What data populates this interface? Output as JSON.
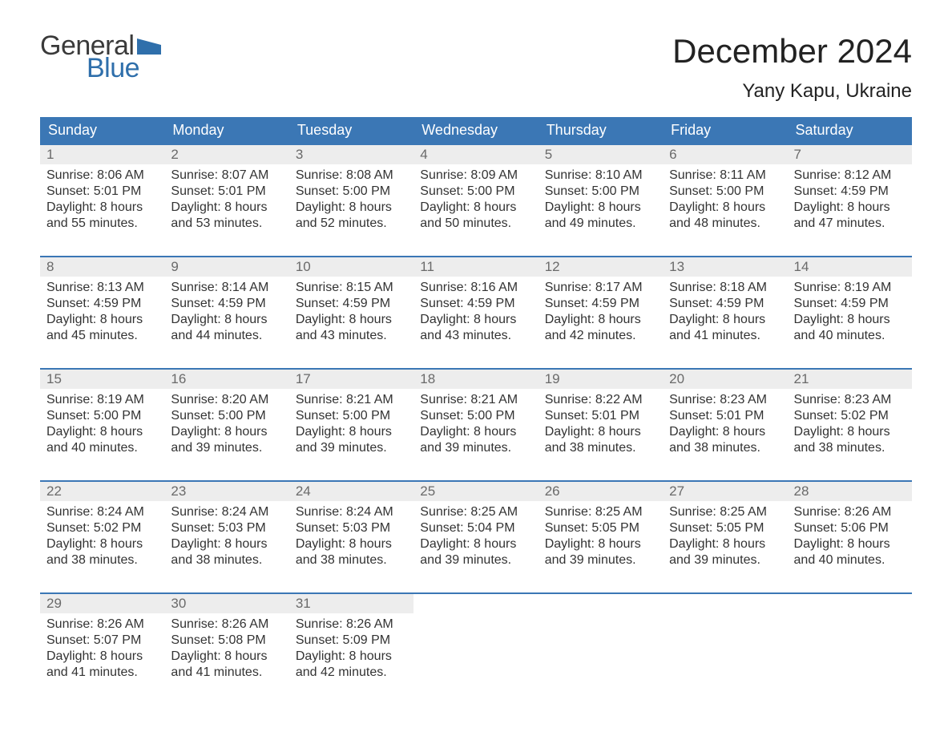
{
  "logo": {
    "line1": "General",
    "line2": "Blue",
    "flag_color": "#2f6fab"
  },
  "title": "December 2024",
  "location": "Yany Kapu, Ukraine",
  "colors": {
    "header_bg": "#3b77b5",
    "header_text": "#ffffff",
    "daynum_bg": "#ededed",
    "daynum_text": "#6a6a6a",
    "body_text": "#333333",
    "rule": "#3b77b5"
  },
  "weekdays": [
    "Sunday",
    "Monday",
    "Tuesday",
    "Wednesday",
    "Thursday",
    "Friday",
    "Saturday"
  ],
  "weeks": [
    [
      {
        "n": "1",
        "sunrise": "8:06 AM",
        "sunset": "5:01 PM",
        "dl1": "Daylight: 8 hours",
        "dl2": "and 55 minutes."
      },
      {
        "n": "2",
        "sunrise": "8:07 AM",
        "sunset": "5:01 PM",
        "dl1": "Daylight: 8 hours",
        "dl2": "and 53 minutes."
      },
      {
        "n": "3",
        "sunrise": "8:08 AM",
        "sunset": "5:00 PM",
        "dl1": "Daylight: 8 hours",
        "dl2": "and 52 minutes."
      },
      {
        "n": "4",
        "sunrise": "8:09 AM",
        "sunset": "5:00 PM",
        "dl1": "Daylight: 8 hours",
        "dl2": "and 50 minutes."
      },
      {
        "n": "5",
        "sunrise": "8:10 AM",
        "sunset": "5:00 PM",
        "dl1": "Daylight: 8 hours",
        "dl2": "and 49 minutes."
      },
      {
        "n": "6",
        "sunrise": "8:11 AM",
        "sunset": "5:00 PM",
        "dl1": "Daylight: 8 hours",
        "dl2": "and 48 minutes."
      },
      {
        "n": "7",
        "sunrise": "8:12 AM",
        "sunset": "4:59 PM",
        "dl1": "Daylight: 8 hours",
        "dl2": "and 47 minutes."
      }
    ],
    [
      {
        "n": "8",
        "sunrise": "8:13 AM",
        "sunset": "4:59 PM",
        "dl1": "Daylight: 8 hours",
        "dl2": "and 45 minutes."
      },
      {
        "n": "9",
        "sunrise": "8:14 AM",
        "sunset": "4:59 PM",
        "dl1": "Daylight: 8 hours",
        "dl2": "and 44 minutes."
      },
      {
        "n": "10",
        "sunrise": "8:15 AM",
        "sunset": "4:59 PM",
        "dl1": "Daylight: 8 hours",
        "dl2": "and 43 minutes."
      },
      {
        "n": "11",
        "sunrise": "8:16 AM",
        "sunset": "4:59 PM",
        "dl1": "Daylight: 8 hours",
        "dl2": "and 43 minutes."
      },
      {
        "n": "12",
        "sunrise": "8:17 AM",
        "sunset": "4:59 PM",
        "dl1": "Daylight: 8 hours",
        "dl2": "and 42 minutes."
      },
      {
        "n": "13",
        "sunrise": "8:18 AM",
        "sunset": "4:59 PM",
        "dl1": "Daylight: 8 hours",
        "dl2": "and 41 minutes."
      },
      {
        "n": "14",
        "sunrise": "8:19 AM",
        "sunset": "4:59 PM",
        "dl1": "Daylight: 8 hours",
        "dl2": "and 40 minutes."
      }
    ],
    [
      {
        "n": "15",
        "sunrise": "8:19 AM",
        "sunset": "5:00 PM",
        "dl1": "Daylight: 8 hours",
        "dl2": "and 40 minutes."
      },
      {
        "n": "16",
        "sunrise": "8:20 AM",
        "sunset": "5:00 PM",
        "dl1": "Daylight: 8 hours",
        "dl2": "and 39 minutes."
      },
      {
        "n": "17",
        "sunrise": "8:21 AM",
        "sunset": "5:00 PM",
        "dl1": "Daylight: 8 hours",
        "dl2": "and 39 minutes."
      },
      {
        "n": "18",
        "sunrise": "8:21 AM",
        "sunset": "5:00 PM",
        "dl1": "Daylight: 8 hours",
        "dl2": "and 39 minutes."
      },
      {
        "n": "19",
        "sunrise": "8:22 AM",
        "sunset": "5:01 PM",
        "dl1": "Daylight: 8 hours",
        "dl2": "and 38 minutes."
      },
      {
        "n": "20",
        "sunrise": "8:23 AM",
        "sunset": "5:01 PM",
        "dl1": "Daylight: 8 hours",
        "dl2": "and 38 minutes."
      },
      {
        "n": "21",
        "sunrise": "8:23 AM",
        "sunset": "5:02 PM",
        "dl1": "Daylight: 8 hours",
        "dl2": "and 38 minutes."
      }
    ],
    [
      {
        "n": "22",
        "sunrise": "8:24 AM",
        "sunset": "5:02 PM",
        "dl1": "Daylight: 8 hours",
        "dl2": "and 38 minutes."
      },
      {
        "n": "23",
        "sunrise": "8:24 AM",
        "sunset": "5:03 PM",
        "dl1": "Daylight: 8 hours",
        "dl2": "and 38 minutes."
      },
      {
        "n": "24",
        "sunrise": "8:24 AM",
        "sunset": "5:03 PM",
        "dl1": "Daylight: 8 hours",
        "dl2": "and 38 minutes."
      },
      {
        "n": "25",
        "sunrise": "8:25 AM",
        "sunset": "5:04 PM",
        "dl1": "Daylight: 8 hours",
        "dl2": "and 39 minutes."
      },
      {
        "n": "26",
        "sunrise": "8:25 AM",
        "sunset": "5:05 PM",
        "dl1": "Daylight: 8 hours",
        "dl2": "and 39 minutes."
      },
      {
        "n": "27",
        "sunrise": "8:25 AM",
        "sunset": "5:05 PM",
        "dl1": "Daylight: 8 hours",
        "dl2": "and 39 minutes."
      },
      {
        "n": "28",
        "sunrise": "8:26 AM",
        "sunset": "5:06 PM",
        "dl1": "Daylight: 8 hours",
        "dl2": "and 40 minutes."
      }
    ],
    [
      {
        "n": "29",
        "sunrise": "8:26 AM",
        "sunset": "5:07 PM",
        "dl1": "Daylight: 8 hours",
        "dl2": "and 41 minutes."
      },
      {
        "n": "30",
        "sunrise": "8:26 AM",
        "sunset": "5:08 PM",
        "dl1": "Daylight: 8 hours",
        "dl2": "and 41 minutes."
      },
      {
        "n": "31",
        "sunrise": "8:26 AM",
        "sunset": "5:09 PM",
        "dl1": "Daylight: 8 hours",
        "dl2": "and 42 minutes."
      },
      null,
      null,
      null,
      null
    ]
  ],
  "labels": {
    "sunrise": "Sunrise: ",
    "sunset": "Sunset: "
  }
}
